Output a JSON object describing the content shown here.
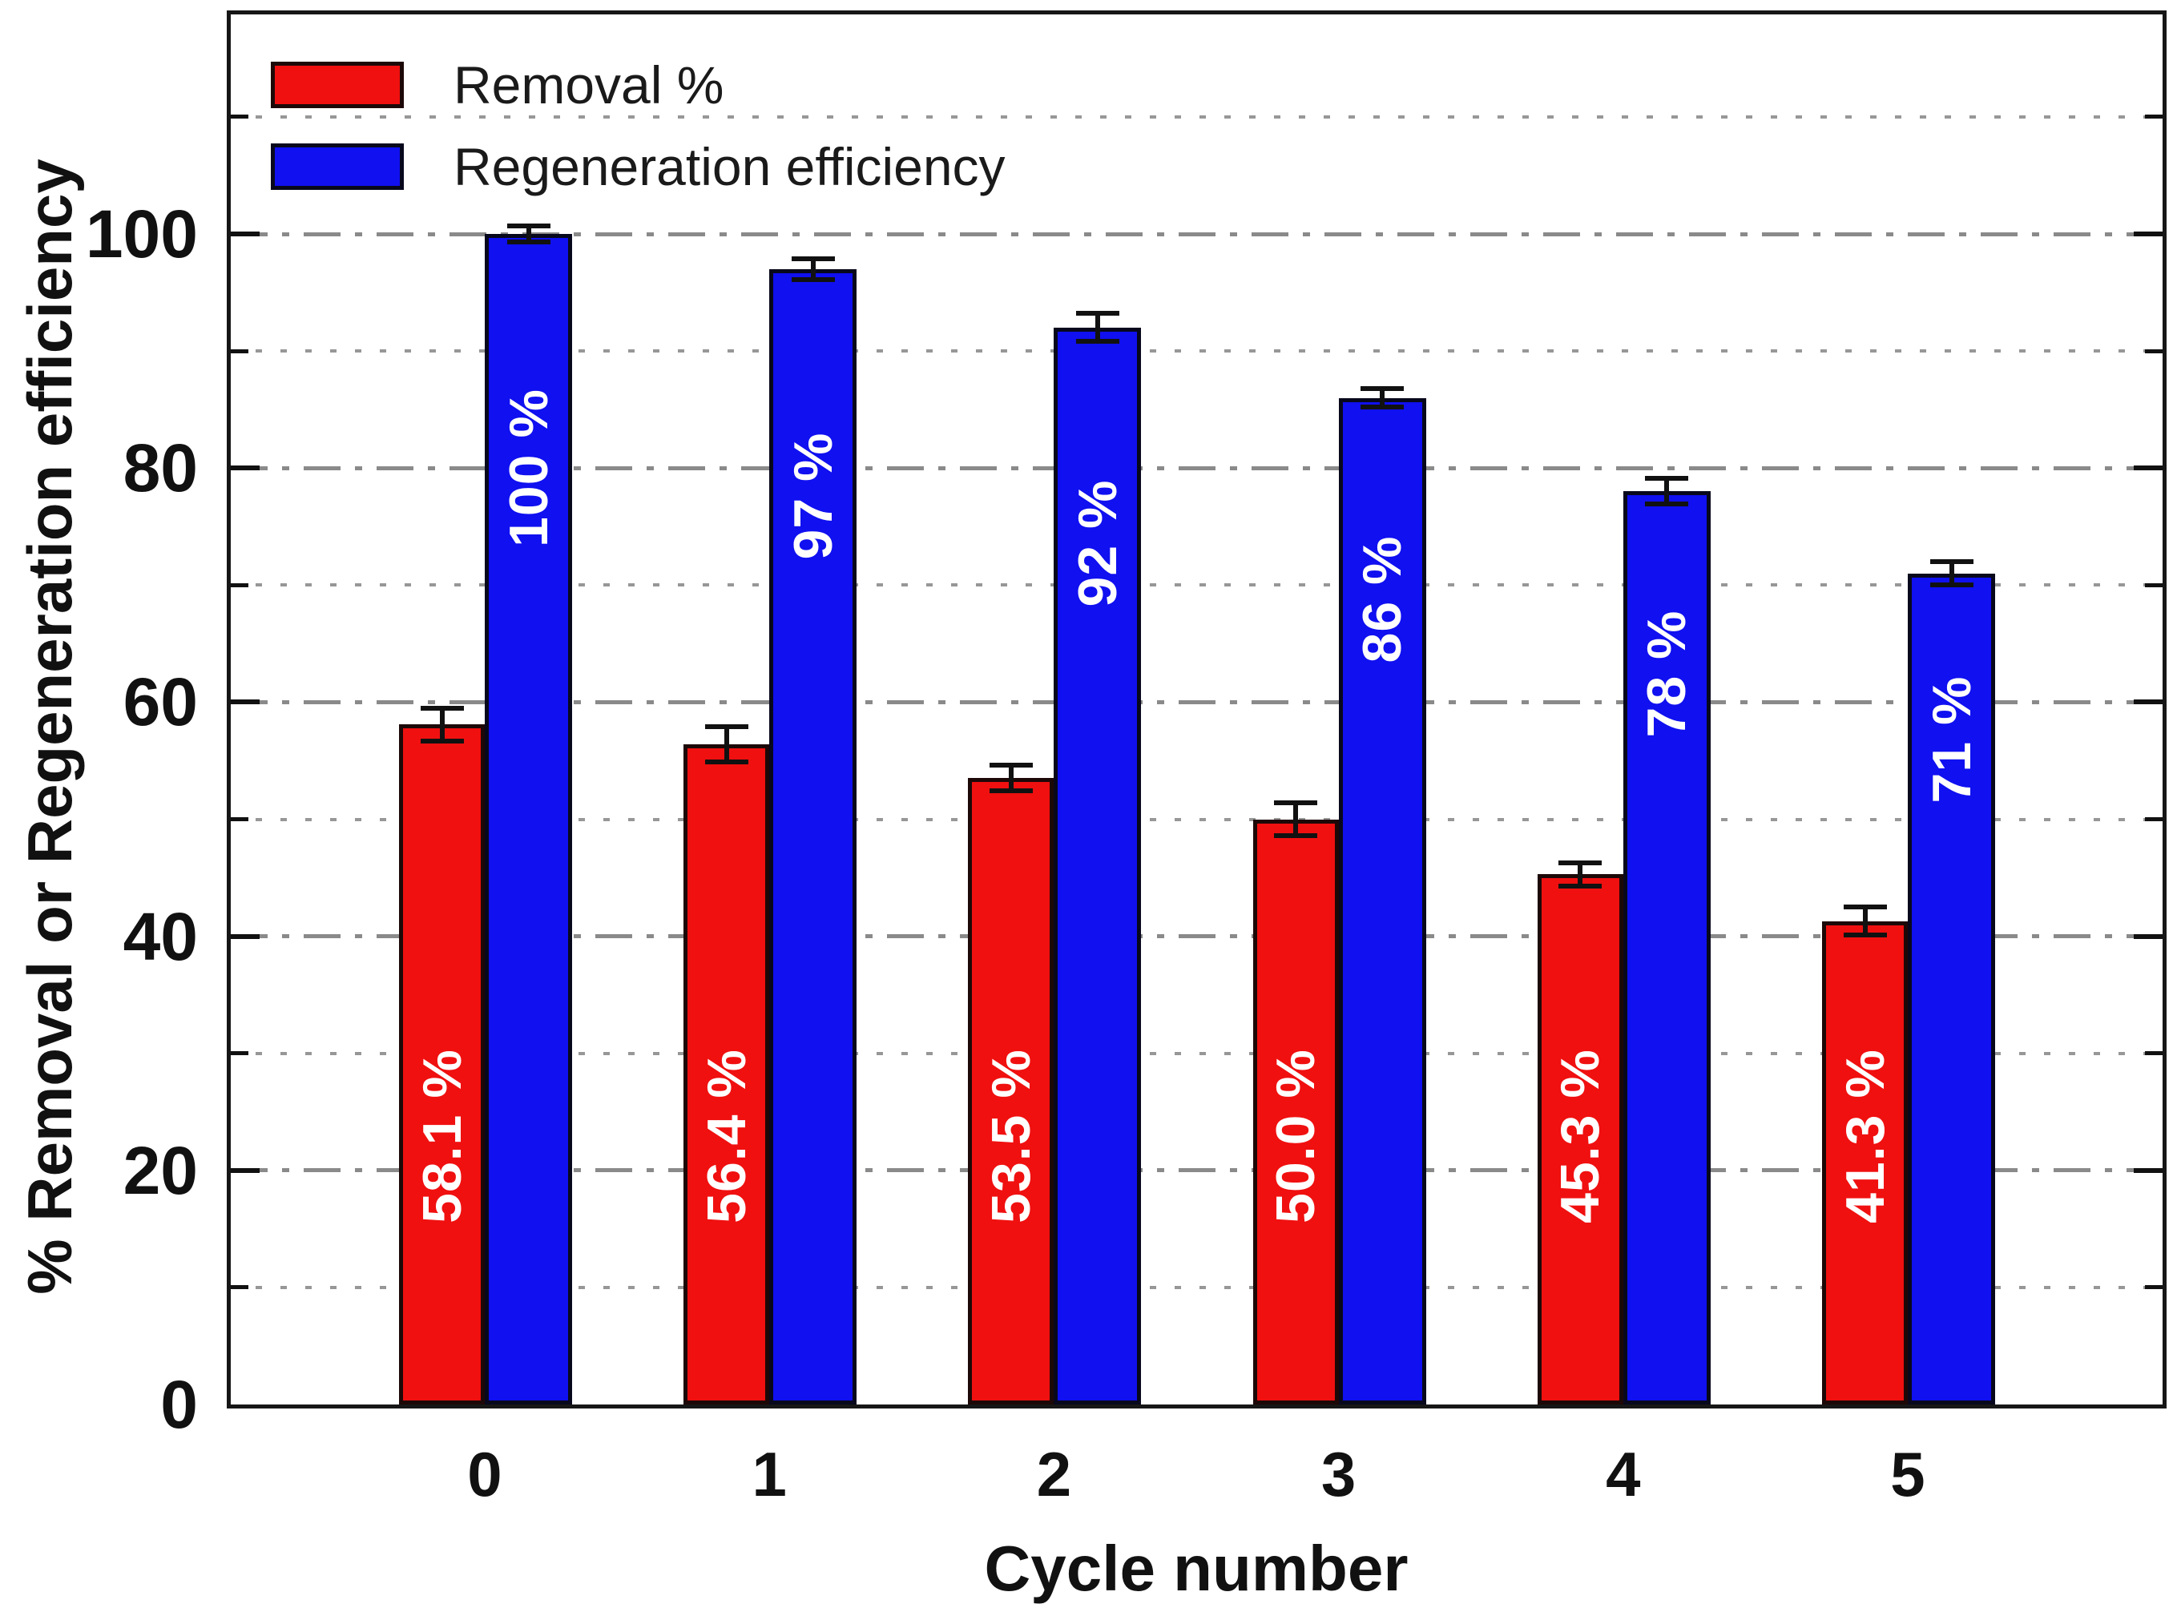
{
  "figure": {
    "background": "#ffffff",
    "frame_color": "#161616"
  },
  "legend": {
    "position": "upper left",
    "items": [
      {
        "label": "Removal %",
        "color": "#f01010",
        "edge_color": "#1d0808"
      },
      {
        "label": "Regeneration efficiency",
        "color": "#1010f0",
        "edge_color": "#08081d"
      }
    ]
  },
  "chart_data": {
    "type": "bar",
    "title": "",
    "xlabel": "Cycle number",
    "ylabel": "% Removal or Regeneration efficiency",
    "categories": [
      "0",
      "1",
      "2",
      "3",
      "4",
      "5"
    ],
    "series": [
      {
        "name": "Removal %",
        "color": "#f01010",
        "edge_color": "#1d0808",
        "values": [
          58.1,
          56.4,
          53.5,
          50.0,
          45.3,
          41.3
        ],
        "errors": [
          1.4,
          1.5,
          1.1,
          1.4,
          1.0,
          1.2
        ],
        "bar_labels": [
          "58.1 %",
          "56.4 %",
          "53.5 %",
          "50.0 %",
          "45.3 %",
          "41.3 %"
        ]
      },
      {
        "name": "Regeneration efficiency",
        "color": "#1010f0",
        "edge_color": "#08081d",
        "values": [
          100,
          97,
          92,
          86,
          78,
          71
        ],
        "errors": [
          0.7,
          0.9,
          1.2,
          0.8,
          1.1,
          1.0
        ],
        "bar_labels": [
          "100 %",
          "97 %",
          "92 %",
          "86 %",
          "78 %",
          "71 %"
        ]
      }
    ],
    "ylim": [
      0,
      119
    ],
    "yticks_major": [
      0,
      20,
      40,
      60,
      80,
      100
    ],
    "yticks_minor": [
      10,
      30,
      50,
      70,
      90,
      110
    ],
    "grid": "horizontal: major dash-dot gray, minor dotted gray",
    "legend_position": "upper left",
    "bar_label_color": "#ffffff",
    "error_bar_color": "#111111",
    "gridline_color": "#8a8a8a"
  }
}
